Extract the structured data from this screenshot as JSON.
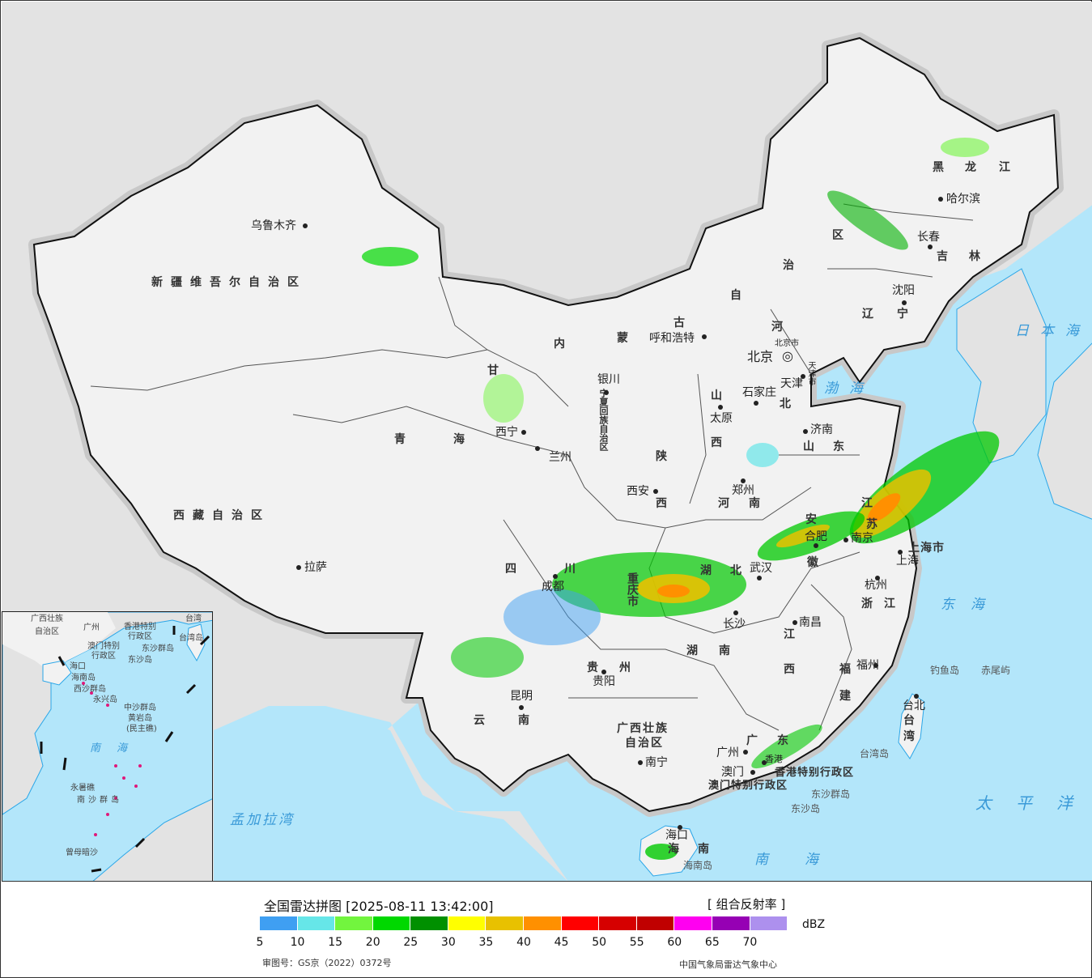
{
  "provinces": [
    "新疆维吾尔自治区",
    "西藏自治区",
    "青",
    "海",
    "甘",
    "内",
    "蒙",
    "古",
    "自",
    "治",
    "区",
    "黑",
    "龙",
    "江",
    "吉",
    "林",
    "辽",
    "宁",
    "河",
    "北",
    "山",
    "西",
    "山",
    "东",
    "河",
    "南",
    "陕",
    "西",
    "四",
    "川",
    "重庆市",
    "湖",
    "北",
    "安",
    "徽",
    "江",
    "苏",
    "上海市",
    "浙",
    "江",
    "江",
    "西",
    "湖",
    "南",
    "贵",
    "州",
    "云",
    "南",
    "广西壮族",
    "自治区",
    "广",
    "东",
    "福",
    "建",
    "台",
    "湾",
    "海",
    "南",
    "宁夏回族自治区",
    "香港特别行政区",
    "澳门特别行政区"
  ],
  "cities": [
    "乌鲁木齐",
    "拉萨",
    "西宁",
    "兰州",
    "银川",
    "呼和浩特",
    "北京",
    "天津",
    "石家庄",
    "太原",
    "济南",
    "郑州",
    "西安",
    "成都",
    "贵阳",
    "昆明",
    "南宁",
    "广州",
    "澳门",
    "香港",
    "长沙",
    "武汉",
    "南昌",
    "合肥",
    "南京",
    "杭州",
    "上海",
    "福州",
    "台北",
    "长春",
    "哈尔滨",
    "沈阳",
    "海口",
    "北京市",
    "天津市"
  ],
  "islands": [
    "钓鱼岛",
    "赤尾屿",
    "东沙群岛",
    "东沙岛",
    "台湾岛",
    "海南岛"
  ],
  "seas": [
    "日本海",
    "渤海",
    "东海",
    "太平洋",
    "南海",
    "孟加拉湾"
  ],
  "inset": {
    "labels": [
      "南海",
      "中沙群岛",
      "黄岩岛",
      "(民主礁)",
      "南沙群岛",
      "永暑礁",
      "曾母暗沙",
      "西沙群岛",
      "永兴岛",
      "台湾",
      "台湾岛",
      "东沙群岛",
      "海口",
      "海南岛",
      "广西壮族",
      "自治区",
      "广州",
      "香港特别",
      "行政区",
      "澳门特别",
      "行政区",
      "东沙岛"
    ]
  },
  "legend": {
    "title": "全国雷达拼图 [2025-08-11 13:42:00]",
    "product": "[ 组合反射率 ]",
    "unit": "dBZ",
    "colors": [
      "#3f9ff2",
      "#66e6e8",
      "#72f53e",
      "#00d800",
      "#009000",
      "#ffff00",
      "#e8c100",
      "#ff9000",
      "#ff0000",
      "#d60000",
      "#c00000",
      "#ff00f0",
      "#9600b4",
      "#ad90ee"
    ],
    "ticks": [
      "5",
      "10",
      "15",
      "20",
      "25",
      "30",
      "35",
      "40",
      "45",
      "50",
      "55",
      "60",
      "65",
      "70"
    ],
    "approval": "审图号：GS京（2022）0372号",
    "org": "中国气象局雷达气象中心"
  }
}
